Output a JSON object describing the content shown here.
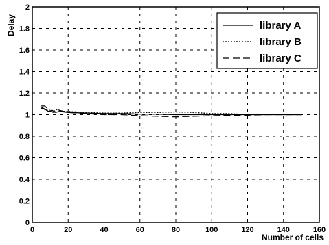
{
  "chart_data": {
    "type": "line",
    "title": "",
    "xlabel": "Number of cells",
    "ylabel": "Delay",
    "xlim": [
      0,
      160
    ],
    "ylim": [
      0,
      2
    ],
    "xticks": [
      0,
      20,
      40,
      60,
      80,
      100,
      120,
      140,
      160
    ],
    "yticks": [
      0,
      0.2,
      0.4,
      0.6,
      0.8,
      1,
      1.2,
      1.4,
      1.6,
      1.8,
      2
    ],
    "xtick_labels": [
      "0",
      "20",
      "40",
      "60",
      "80",
      "100",
      "120",
      "140",
      "160"
    ],
    "ytick_labels": [
      "0",
      "0.2",
      "0.4",
      "0.6",
      "0.8",
      "1",
      "1.2",
      "1.4",
      "1.6",
      "1.8",
      "2"
    ],
    "grid": true,
    "legend_position": "top-right",
    "series": [
      {
        "name": "library A",
        "style": "solid",
        "x": [
          5,
          7,
          9,
          11,
          13,
          15,
          20,
          30,
          40,
          50,
          60,
          70,
          80,
          90,
          100,
          110,
          120,
          130,
          140,
          150
        ],
        "y": [
          1.07,
          1.05,
          1.03,
          1.04,
          1.02,
          1.03,
          1.02,
          1.015,
          1.01,
          1.01,
          1.005,
          1.005,
          1.0,
          1.0,
          1.0,
          1.0,
          1.0,
          1.0,
          1.0,
          1.0
        ]
      },
      {
        "name": "library B",
        "style": "dotted",
        "x": [
          5,
          8,
          10,
          12,
          14,
          16,
          20,
          30,
          40,
          50,
          60,
          70,
          80,
          90,
          100,
          110,
          120,
          130,
          140,
          150
        ],
        "y": [
          1.06,
          1.04,
          1.05,
          1.03,
          1.05,
          1.03,
          1.03,
          1.02,
          1.015,
          1.015,
          1.02,
          1.02,
          1.025,
          1.02,
          1.01,
          1.01,
          1.0,
          1.0,
          1.0,
          1.0
        ]
      },
      {
        "name": "library C",
        "style": "dashed",
        "x": [
          5,
          7,
          10,
          12,
          15,
          20,
          30,
          40,
          50,
          60,
          70,
          80,
          90,
          100,
          110,
          120,
          130,
          140,
          150
        ],
        "y": [
          1.08,
          1.08,
          1.03,
          1.02,
          1.04,
          1.02,
          1.01,
          1.0,
          1.0,
          0.99,
          0.985,
          0.98,
          0.985,
          0.99,
          0.995,
          0.995,
          1.0,
          1.0,
          1.0
        ]
      }
    ]
  }
}
